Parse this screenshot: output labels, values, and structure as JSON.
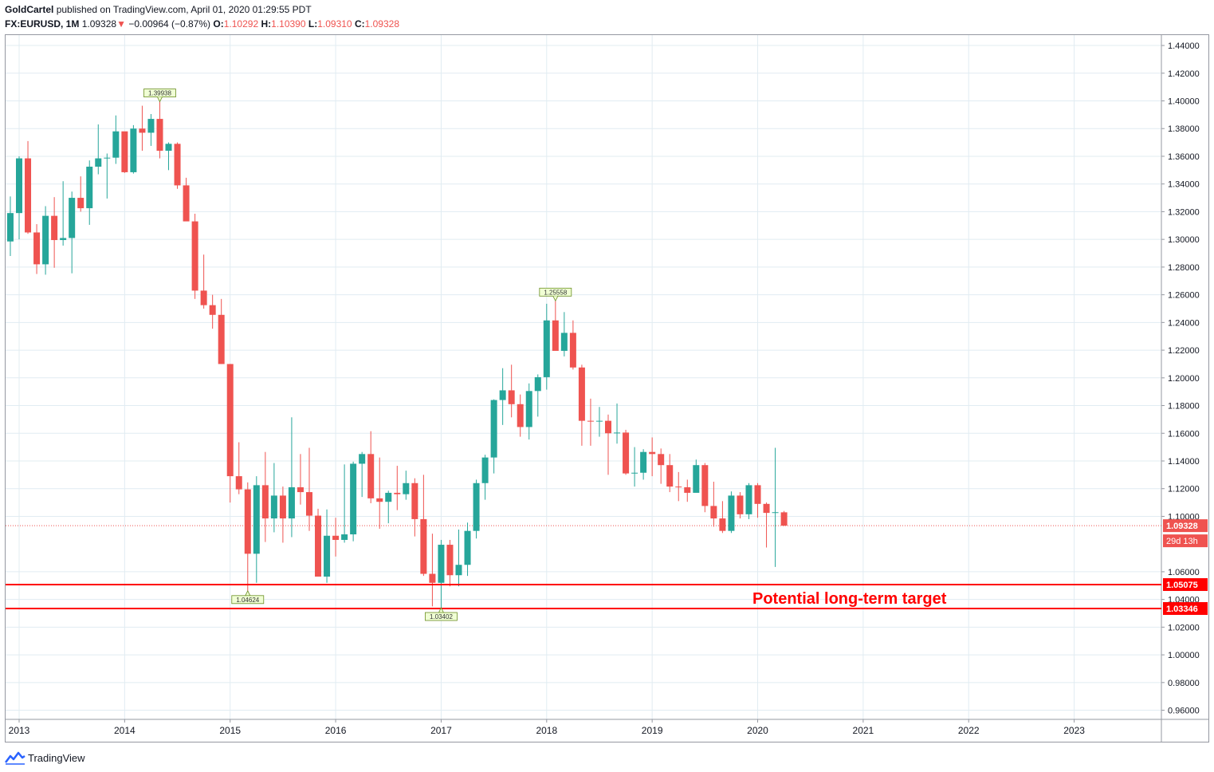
{
  "header": {
    "author": "GoldCartel",
    "published_text": "published on TradingView.com, April 01, 2020 01:29:55 PDT",
    "symbol": "FX:EURUSD, 1M",
    "last": "1.09328",
    "change_arrow": "▼",
    "change": "−0.00964 (−0.87%)",
    "o_label": "O:",
    "o": "1.10292",
    "h_label": "H:",
    "h": "1.10390",
    "l_label": "L:",
    "l": "1.09310",
    "c_label": "C:",
    "c": "1.09328"
  },
  "footer": {
    "brand": "TradingView"
  },
  "annotation": {
    "text": "Potential long-term target"
  },
  "colors": {
    "up": "#26a69a",
    "down": "#ef5350",
    "target_line": "#ff0000",
    "grid": "#e1ecf2",
    "axis_text": "#131722"
  },
  "chart_data": {
    "type": "candlestick",
    "interval": "1M",
    "ylim": [
      0.95,
      1.45
    ],
    "y_ticks": [
      "1.44000",
      "1.42000",
      "1.40000",
      "1.38000",
      "1.36000",
      "1.34000",
      "1.32000",
      "1.30000",
      "1.28000",
      "1.26000",
      "1.24000",
      "1.22000",
      "1.20000",
      "1.18000",
      "1.16000",
      "1.14000",
      "1.12000",
      "1.10000",
      "1.06000",
      "1.04000",
      "1.02000",
      "1.00000",
      "0.98000",
      "0.96000"
    ],
    "x_ticks": [
      "2013",
      "2014",
      "2015",
      "2016",
      "2017",
      "2018",
      "2019",
      "2020",
      "2021",
      "2022",
      "2023"
    ],
    "current_price": {
      "value": 1.09328,
      "label": "1.09328",
      "countdown": "29d 13h"
    },
    "horizontal_lines": [
      {
        "value": 1.05075,
        "label": "1.05075"
      },
      {
        "value": 1.03346,
        "label": "1.03346"
      }
    ],
    "price_markers": [
      {
        "label": "1.39938",
        "value": 1.39938,
        "date": "2014-05",
        "position": "above"
      },
      {
        "label": "1.25558",
        "value": 1.25558,
        "date": "2018-02",
        "position": "above"
      },
      {
        "label": "1.04624",
        "value": 1.04624,
        "date": "2015-03",
        "position": "below"
      },
      {
        "label": "1.03402",
        "value": 1.03402,
        "date": "2017-01",
        "position": "below"
      }
    ],
    "candles": [
      {
        "date": "2012-12",
        "o": 1.2985,
        "h": 1.331,
        "l": 1.288,
        "c": 1.319
      },
      {
        "date": "2013-01",
        "o": 1.319,
        "h": 1.36,
        "l": 1.3,
        "c": 1.3585
      },
      {
        "date": "2013-02",
        "o": 1.3585,
        "h": 1.371,
        "l": 1.304,
        "c": 1.305
      },
      {
        "date": "2013-03",
        "o": 1.305,
        "h": 1.311,
        "l": 1.275,
        "c": 1.282
      },
      {
        "date": "2013-04",
        "o": 1.282,
        "h": 1.324,
        "l": 1.2745,
        "c": 1.317
      },
      {
        "date": "2013-05",
        "o": 1.317,
        "h": 1.3305,
        "l": 1.2795,
        "c": 1.2995
      },
      {
        "date": "2013-06",
        "o": 1.2995,
        "h": 1.342,
        "l": 1.2955,
        "c": 1.301
      },
      {
        "date": "2013-07",
        "o": 1.301,
        "h": 1.3345,
        "l": 1.2755,
        "c": 1.33
      },
      {
        "date": "2013-08",
        "o": 1.33,
        "h": 1.3455,
        "l": 1.32,
        "c": 1.3225
      },
      {
        "date": "2013-09",
        "o": 1.3225,
        "h": 1.357,
        "l": 1.3105,
        "c": 1.3525
      },
      {
        "date": "2013-10",
        "o": 1.3525,
        "h": 1.383,
        "l": 1.347,
        "c": 1.3585
      },
      {
        "date": "2013-11",
        "o": 1.3585,
        "h": 1.362,
        "l": 1.3295,
        "c": 1.359
      },
      {
        "date": "2013-12",
        "o": 1.359,
        "h": 1.3895,
        "l": 1.3545,
        "c": 1.378
      },
      {
        "date": "2014-01",
        "o": 1.378,
        "h": 1.3775,
        "l": 1.348,
        "c": 1.3485
      },
      {
        "date": "2014-02",
        "o": 1.3485,
        "h": 1.3825,
        "l": 1.3475,
        "c": 1.38
      },
      {
        "date": "2014-03",
        "o": 1.38,
        "h": 1.3965,
        "l": 1.364,
        "c": 1.377
      },
      {
        "date": "2014-04",
        "o": 1.377,
        "h": 1.3905,
        "l": 1.3675,
        "c": 1.387
      },
      {
        "date": "2014-05",
        "o": 1.387,
        "h": 1.39938,
        "l": 1.3585,
        "c": 1.364
      },
      {
        "date": "2014-06",
        "o": 1.364,
        "h": 1.37,
        "l": 1.35,
        "c": 1.369
      },
      {
        "date": "2014-07",
        "o": 1.369,
        "h": 1.37,
        "l": 1.3365,
        "c": 1.339
      },
      {
        "date": "2014-08",
        "o": 1.339,
        "h": 1.3445,
        "l": 1.315,
        "c": 1.313
      },
      {
        "date": "2014-09",
        "o": 1.313,
        "h": 1.3185,
        "l": 1.257,
        "c": 1.263
      },
      {
        "date": "2014-10",
        "o": 1.263,
        "h": 1.289,
        "l": 1.25,
        "c": 1.2525
      },
      {
        "date": "2014-11",
        "o": 1.2525,
        "h": 1.26,
        "l": 1.2355,
        "c": 1.2455
      },
      {
        "date": "2014-12",
        "o": 1.2455,
        "h": 1.257,
        "l": 1.21,
        "c": 1.21
      },
      {
        "date": "2015-01",
        "o": 1.21,
        "h": 1.21,
        "l": 1.11,
        "c": 1.129
      },
      {
        "date": "2015-02",
        "o": 1.129,
        "h": 1.1535,
        "l": 1.116,
        "c": 1.1195
      },
      {
        "date": "2015-03",
        "o": 1.1195,
        "h": 1.1245,
        "l": 1.04624,
        "c": 1.073
      },
      {
        "date": "2015-04",
        "o": 1.073,
        "h": 1.129,
        "l": 1.052,
        "c": 1.1225
      },
      {
        "date": "2015-05",
        "o": 1.1225,
        "h": 1.1465,
        "l": 1.0815,
        "c": 1.0985
      },
      {
        "date": "2015-06",
        "o": 1.0985,
        "h": 1.1385,
        "l": 1.0885,
        "c": 1.115
      },
      {
        "date": "2015-07",
        "o": 1.115,
        "h": 1.1215,
        "l": 1.081,
        "c": 1.0985
      },
      {
        "date": "2015-08",
        "o": 1.0985,
        "h": 1.1715,
        "l": 1.085,
        "c": 1.121
      },
      {
        "date": "2015-09",
        "o": 1.121,
        "h": 1.145,
        "l": 1.1085,
        "c": 1.1175
      },
      {
        "date": "2015-10",
        "o": 1.1175,
        "h": 1.1495,
        "l": 1.0895,
        "c": 1.1005
      },
      {
        "date": "2015-11",
        "o": 1.1005,
        "h": 1.1055,
        "l": 1.057,
        "c": 1.0565
      },
      {
        "date": "2015-12",
        "o": 1.0565,
        "h": 1.105,
        "l": 1.052,
        "c": 1.086
      },
      {
        "date": "2016-01",
        "o": 1.086,
        "h": 1.099,
        "l": 1.071,
        "c": 1.083
      },
      {
        "date": "2016-02",
        "o": 1.083,
        "h": 1.1375,
        "l": 1.081,
        "c": 1.087
      },
      {
        "date": "2016-03",
        "o": 1.087,
        "h": 1.1395,
        "l": 1.082,
        "c": 1.138
      },
      {
        "date": "2016-04",
        "o": 1.138,
        "h": 1.1465,
        "l": 1.114,
        "c": 1.145
      },
      {
        "date": "2016-05",
        "o": 1.145,
        "h": 1.1615,
        "l": 1.1095,
        "c": 1.113
      },
      {
        "date": "2016-06",
        "o": 1.113,
        "h": 1.1425,
        "l": 1.091,
        "c": 1.1105
      },
      {
        "date": "2016-07",
        "o": 1.1105,
        "h": 1.1185,
        "l": 1.095,
        "c": 1.117
      },
      {
        "date": "2016-08",
        "o": 1.117,
        "h": 1.1365,
        "l": 1.1045,
        "c": 1.116
      },
      {
        "date": "2016-09",
        "o": 1.116,
        "h": 1.133,
        "l": 1.112,
        "c": 1.124
      },
      {
        "date": "2016-10",
        "o": 1.124,
        "h": 1.1275,
        "l": 1.0855,
        "c": 1.098
      },
      {
        "date": "2016-11",
        "o": 1.098,
        "h": 1.13,
        "l": 1.057,
        "c": 1.0585
      },
      {
        "date": "2016-12",
        "o": 1.0585,
        "h": 1.0875,
        "l": 1.035,
        "c": 1.052
      },
      {
        "date": "2017-01",
        "o": 1.052,
        "h": 1.083,
        "l": 1.03402,
        "c": 1.0795
      },
      {
        "date": "2017-02",
        "o": 1.0795,
        "h": 1.083,
        "l": 1.0495,
        "c": 1.0575
      },
      {
        "date": "2017-03",
        "o": 1.0575,
        "h": 1.0905,
        "l": 1.0495,
        "c": 1.065
      },
      {
        "date": "2017-04",
        "o": 1.065,
        "h": 1.0955,
        "l": 1.057,
        "c": 1.0895
      },
      {
        "date": "2017-05",
        "o": 1.0895,
        "h": 1.1265,
        "l": 1.084,
        "c": 1.124
      },
      {
        "date": "2017-06",
        "o": 1.124,
        "h": 1.1445,
        "l": 1.112,
        "c": 1.1425
      },
      {
        "date": "2017-07",
        "o": 1.1425,
        "h": 1.1845,
        "l": 1.131,
        "c": 1.184
      },
      {
        "date": "2017-08",
        "o": 1.184,
        "h": 1.207,
        "l": 1.166,
        "c": 1.191
      },
      {
        "date": "2017-09",
        "o": 1.191,
        "h": 1.2095,
        "l": 1.1715,
        "c": 1.181
      },
      {
        "date": "2017-10",
        "o": 1.181,
        "h": 1.188,
        "l": 1.1575,
        "c": 1.1645
      },
      {
        "date": "2017-11",
        "o": 1.1645,
        "h": 1.196,
        "l": 1.1555,
        "c": 1.1905
      },
      {
        "date": "2017-12",
        "o": 1.1905,
        "h": 1.2025,
        "l": 1.172,
        "c": 1.2005
      },
      {
        "date": "2018-01",
        "o": 1.2005,
        "h": 1.2535,
        "l": 1.1915,
        "c": 1.2415
      },
      {
        "date": "2018-02",
        "o": 1.2415,
        "h": 1.25558,
        "l": 1.2205,
        "c": 1.2195
      },
      {
        "date": "2018-03",
        "o": 1.2195,
        "h": 1.2475,
        "l": 1.2155,
        "c": 1.2325
      },
      {
        "date": "2018-04",
        "o": 1.2325,
        "h": 1.2415,
        "l": 1.206,
        "c": 1.2075
      },
      {
        "date": "2018-05",
        "o": 1.2075,
        "h": 1.2095,
        "l": 1.151,
        "c": 1.169
      },
      {
        "date": "2018-06",
        "o": 1.169,
        "h": 1.185,
        "l": 1.151,
        "c": 1.1685
      },
      {
        "date": "2018-07",
        "o": 1.1685,
        "h": 1.179,
        "l": 1.1575,
        "c": 1.169
      },
      {
        "date": "2018-08",
        "o": 1.169,
        "h": 1.1735,
        "l": 1.13,
        "c": 1.16
      },
      {
        "date": "2018-09",
        "o": 1.16,
        "h": 1.1815,
        "l": 1.1525,
        "c": 1.1605
      },
      {
        "date": "2018-10",
        "o": 1.1605,
        "h": 1.1625,
        "l": 1.13,
        "c": 1.131
      },
      {
        "date": "2018-11",
        "o": 1.131,
        "h": 1.15,
        "l": 1.1215,
        "c": 1.1315
      },
      {
        "date": "2018-12",
        "o": 1.1315,
        "h": 1.1485,
        "l": 1.1265,
        "c": 1.1465
      },
      {
        "date": "2019-01",
        "o": 1.1465,
        "h": 1.157,
        "l": 1.129,
        "c": 1.145
      },
      {
        "date": "2019-02",
        "o": 1.145,
        "h": 1.149,
        "l": 1.1235,
        "c": 1.137
      },
      {
        "date": "2019-03",
        "o": 1.137,
        "h": 1.145,
        "l": 1.1175,
        "c": 1.1215
      },
      {
        "date": "2019-04",
        "o": 1.1215,
        "h": 1.132,
        "l": 1.111,
        "c": 1.121
      },
      {
        "date": "2019-05",
        "o": 1.121,
        "h": 1.1265,
        "l": 1.1105,
        "c": 1.117
      },
      {
        "date": "2019-06",
        "o": 1.117,
        "h": 1.141,
        "l": 1.118,
        "c": 1.137
      },
      {
        "date": "2019-07",
        "o": 1.137,
        "h": 1.1385,
        "l": 1.103,
        "c": 1.1075
      },
      {
        "date": "2019-08",
        "o": 1.1075,
        "h": 1.125,
        "l": 1.0925,
        "c": 1.0985
      },
      {
        "date": "2019-09",
        "o": 1.0985,
        "h": 1.111,
        "l": 1.088,
        "c": 1.0895
      },
      {
        "date": "2019-10",
        "o": 1.0895,
        "h": 1.118,
        "l": 1.088,
        "c": 1.115
      },
      {
        "date": "2019-11",
        "o": 1.115,
        "h": 1.1175,
        "l": 1.0985,
        "c": 1.1015
      },
      {
        "date": "2019-12",
        "o": 1.1015,
        "h": 1.124,
        "l": 1.098,
        "c": 1.1225
      },
      {
        "date": "2020-01",
        "o": 1.1225,
        "h": 1.124,
        "l": 1.099,
        "c": 1.109
      },
      {
        "date": "2020-02",
        "o": 1.109,
        "h": 1.11,
        "l": 1.0775,
        "c": 1.1025
      },
      {
        "date": "2020-03",
        "o": 1.1025,
        "h": 1.1495,
        "l": 1.0635,
        "c": 1.103
      },
      {
        "date": "2020-04",
        "o": 1.10292,
        "h": 1.1039,
        "l": 1.0931,
        "c": 1.09328
      }
    ]
  }
}
